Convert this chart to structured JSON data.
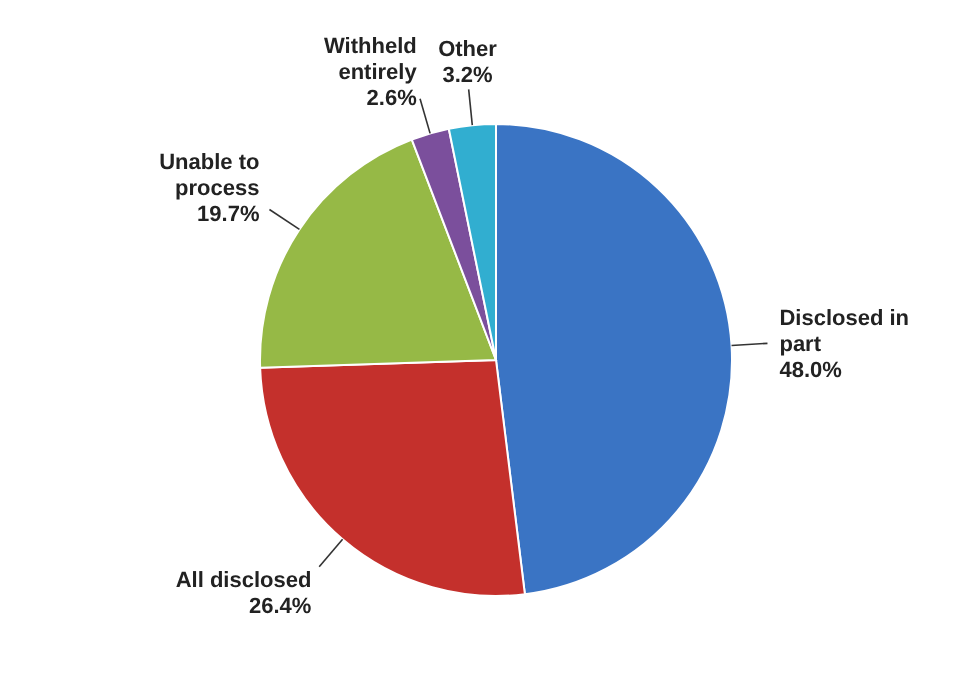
{
  "chart_data": {
    "type": "pie",
    "categories": [
      "Disclosed in part",
      "All disclosed",
      "Unable to process",
      "Withheld entirely",
      "Other"
    ],
    "values": [
      48.0,
      26.4,
      19.7,
      2.6,
      3.2
    ],
    "colors": [
      "#3a74c4",
      "#c4302c",
      "#96b946",
      "#7b4f9c",
      "#31aed0"
    ],
    "value_labels": [
      "48.0%",
      "26.4%",
      "19.7%",
      "2.6%",
      "3.2%"
    ]
  }
}
